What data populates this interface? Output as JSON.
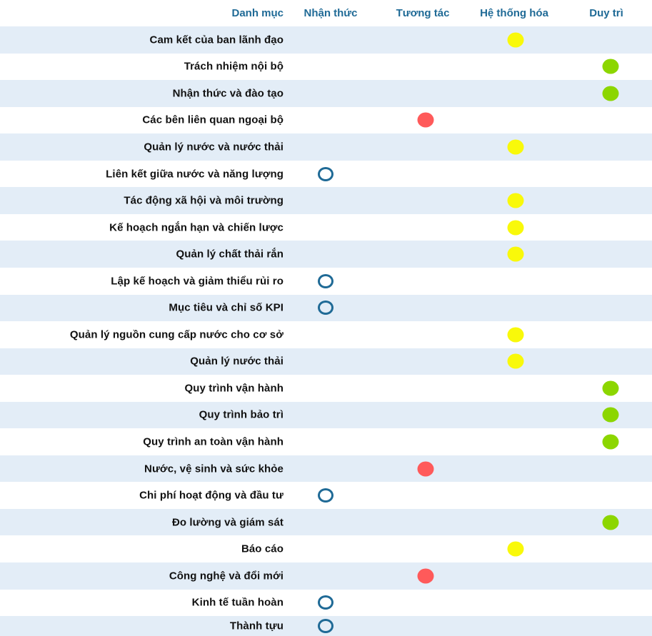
{
  "header": {
    "category": "Danh mục",
    "stages": [
      "Nhận thức",
      "Tương tác",
      "Hệ thống hóa",
      "Duy trì"
    ]
  },
  "stage_colors": [
    "#1f6a96",
    "#ff5a5a",
    "#f9f90a",
    "#8cd600"
  ],
  "rows": [
    {
      "label": "Cam kết của ban lãnh đạo",
      "stage": 2
    },
    {
      "label": "Trách nhiệm nội bộ",
      "stage": 3
    },
    {
      "label": "Nhận thức và đào tạo",
      "stage": 3
    },
    {
      "label": "Các bên liên quan ngoại bộ",
      "stage": 1
    },
    {
      "label": "Quản lý nước và nước thải",
      "stage": 2
    },
    {
      "label": "Liên kết giữa nước và năng lượng",
      "stage": 0
    },
    {
      "label": "Tác động xã hội và môi trường",
      "stage": 2
    },
    {
      "label": "Kế hoạch ngắn hạn và chiến lược",
      "stage": 2
    },
    {
      "label": "Quản lý chất thải rắn",
      "stage": 2
    },
    {
      "label": "Lập kế hoạch và giảm thiểu rủi ro",
      "stage": 0
    },
    {
      "label": "Mục tiêu và chỉ số KPI",
      "stage": 0
    },
    {
      "label": "Quản lý nguồn cung cấp nước cho cơ sở",
      "stage": 2
    },
    {
      "label": "Quản lý nước thải",
      "stage": 2
    },
    {
      "label": "Quy trình vận hành",
      "stage": 3
    },
    {
      "label": "Quy trình bảo trì",
      "stage": 3
    },
    {
      "label": "Quy trình an toàn vận hành",
      "stage": 3
    },
    {
      "label": "Nước, vệ sinh và sức khỏe",
      "stage": 1
    },
    {
      "label": "Chi phí hoạt động và đầu tư",
      "stage": 0
    },
    {
      "label": "Đo lường và giám sát",
      "stage": 3
    },
    {
      "label": "Báo cáo",
      "stage": 2
    },
    {
      "label": "Công nghệ và đổi mới",
      "stage": 1
    },
    {
      "label": "Kinh tế tuần hoàn",
      "stage": 0
    },
    {
      "label": "Thành tựu",
      "stage": 0
    }
  ]
}
